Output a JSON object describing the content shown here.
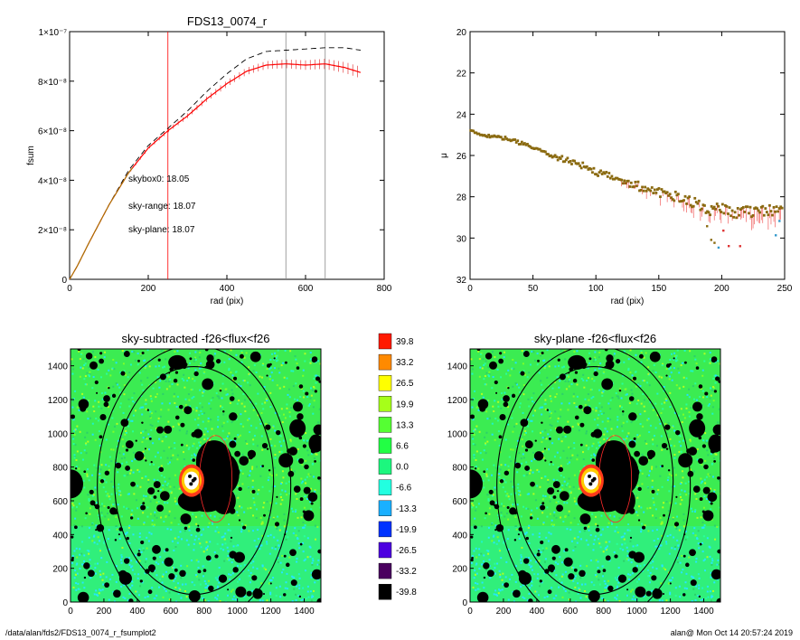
{
  "footer": {
    "path": "/data/alan/fds2/FDS13_0074_r_fsumplot2",
    "stamp": "alan@  Mon Oct 14 20:57:24 2019"
  },
  "chart_data": [
    {
      "type": "line",
      "title": "FDS13_0074_r",
      "xlabel": "rad (pix)",
      "ylabel": "fsum",
      "xlim": [
        0,
        800
      ],
      "ylim": [
        0,
        1e-07
      ],
      "xticks": [
        "0",
        "200",
        "400",
        "600",
        "800"
      ],
      "yticks": [
        "0",
        "2×10⁻⁸",
        "4×10⁻⁸",
        "6×10⁻⁸",
        "8×10⁻⁸",
        "1×10⁻⁷"
      ],
      "yticks_values": [
        0,
        2e-08,
        4e-08,
        6e-08,
        8e-08,
        1e-07
      ],
      "series": [
        {
          "style": "dashed",
          "color": "#000000",
          "x": [
            0,
            20,
            50,
            100,
            150,
            200,
            250,
            300,
            350,
            400,
            450,
            500,
            550,
            600,
            650,
            700,
            740
          ],
          "y": [
            0,
            5.5e-09,
            1.5e-08,
            3e-08,
            4.4e-08,
            5.4e-08,
            6.1e-08,
            6.8e-08,
            7.6e-08,
            8.3e-08,
            8.9e-08,
            9.2e-08,
            9.25e-08,
            9.3e-08,
            9.35e-08,
            9.35e-08,
            9.25e-08
          ]
        },
        {
          "style": "solid-errorbars",
          "color": "#ff0000",
          "x": [
            0,
            20,
            50,
            100,
            150,
            200,
            250,
            300,
            350,
            400,
            450,
            500,
            550,
            600,
            650,
            700,
            740
          ],
          "y": [
            0,
            5.5e-09,
            1.5e-08,
            3e-08,
            4.3e-08,
            5.3e-08,
            6e-08,
            6.6e-08,
            7.3e-08,
            7.9e-08,
            8.4e-08,
            8.65e-08,
            8.7e-08,
            8.65e-08,
            8.7e-08,
            8.55e-08,
            8.35e-08
          ]
        }
      ],
      "vlines": [
        {
          "x": 250,
          "color": "#ff0000"
        },
        {
          "x": 550,
          "color": "#888888"
        },
        {
          "x": 650,
          "color": "#888888"
        }
      ],
      "annotations": [
        {
          "text": "skybox0: 18.05",
          "color": "#000000"
        },
        {
          "text": "sky-range: 18.07",
          "color": "#ff0000"
        },
        {
          "text": "sky-plane: 18.07",
          "color": "#00cc00"
        }
      ]
    },
    {
      "type": "scatter",
      "title": "",
      "xlabel": "rad (pix)",
      "ylabel": "μ",
      "xlim": [
        0,
        250
      ],
      "ylim": [
        32,
        20
      ],
      "xticks": [
        "0",
        "50",
        "100",
        "150",
        "200",
        "250"
      ],
      "yticks": [
        "20",
        "22",
        "24",
        "26",
        "28",
        "30",
        "32"
      ],
      "profile": {
        "x": [
          0,
          10,
          20,
          30,
          40,
          50,
          60,
          70,
          80,
          90,
          100,
          110,
          120,
          130,
          140,
          150,
          160,
          170,
          180,
          190,
          200,
          210,
          220,
          230,
          240,
          250
        ],
        "y": [
          24.8,
          25.0,
          25.1,
          25.2,
          25.4,
          25.6,
          25.9,
          26.1,
          26.3,
          26.5,
          26.8,
          27.0,
          27.2,
          27.4,
          27.6,
          27.8,
          27.9,
          28.1,
          28.3,
          28.6,
          28.6,
          28.7,
          28.8,
          28.7,
          28.6,
          28.4
        ]
      }
    },
    {
      "type": "heatmap",
      "title": "sky-subtracted -f26<flux<f26",
      "xlim": [
        0,
        1500
      ],
      "ylim": [
        0,
        1500
      ],
      "xticks": [
        "0",
        "200",
        "400",
        "600",
        "800",
        "1000",
        "1200",
        "1400"
      ],
      "yticks": [
        "0",
        "200",
        "400",
        "600",
        "800",
        "1000",
        "1200",
        "1400"
      ]
    },
    {
      "type": "heatmap",
      "title": "sky-plane -f26<flux<f26",
      "xlim": [
        0,
        1500
      ],
      "ylim": [
        0,
        1500
      ],
      "xticks": [
        "0",
        "200",
        "400",
        "600",
        "800",
        "1000",
        "1200",
        "1400"
      ],
      "yticks": [
        "0",
        "200",
        "400",
        "600",
        "800",
        "1000",
        "1200",
        "1400"
      ]
    }
  ],
  "colorbar": {
    "labels": [
      "39.8",
      "33.2",
      "26.5",
      "19.9",
      "13.3",
      "6.6",
      "0.0",
      "-6.6",
      "-13.3",
      "-19.9",
      "-26.5",
      "-33.2",
      "-39.8"
    ],
    "colors": [
      "#ff1a00",
      "#ff8a00",
      "#ffff00",
      "#a6ff19",
      "#55ff33",
      "#22ff44",
      "#1cf77e",
      "#22ffe0",
      "#1ab0ff",
      "#0033ff",
      "#4d00e0",
      "#4a005f",
      "#000000"
    ]
  }
}
